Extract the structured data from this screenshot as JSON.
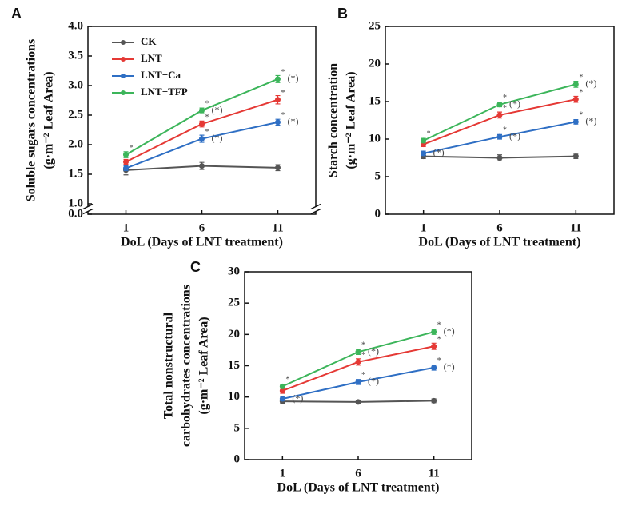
{
  "chart_data": [
    {
      "type": "line",
      "panel": "A",
      "ylabel": [
        "Soluble sugars concentrations",
        "(g·m⁻² Leaf Area)"
      ],
      "xlabel": "DoL (Days of LNT treatment)",
      "categories": [
        "1",
        "6",
        "11"
      ],
      "ylim": [
        0,
        4
      ],
      "ybreak": [
        0,
        1
      ],
      "yticks": [
        {
          "value": 0,
          "label": "0.0"
        },
        {
          "value": 1,
          "label": "1.0"
        },
        1.5,
        {
          "value": 2,
          "label": "2.0"
        },
        2.5,
        {
          "value": 3,
          "label": "3.0"
        },
        3.5,
        {
          "value": 4,
          "label": "4.0"
        }
      ],
      "legend": "upper left",
      "series": [
        {
          "name": "CK",
          "color": "#555555",
          "values": [
            1.57,
            1.64,
            1.61
          ],
          "errors": [
            0.08,
            0.06,
            0.05
          ]
        },
        {
          "name": "LNT",
          "color": "#e53935",
          "values": [
            1.71,
            2.35,
            2.76
          ],
          "errors": [
            0.04,
            0.05,
            0.07
          ],
          "point_labels": [
            null,
            "*",
            "*"
          ]
        },
        {
          "name": "LNT+Ca",
          "color": "#2f6fc4",
          "values": [
            1.6,
            2.1,
            2.38
          ],
          "errors": [
            0.04,
            0.06,
            0.05
          ],
          "point_labels": [
            null,
            "*",
            "*"
          ],
          "side_labels": [
            null,
            "(*)",
            "(*)"
          ]
        },
        {
          "name": "LNT+TFP",
          "color": "#3cb55a",
          "values": [
            1.83,
            2.58,
            3.11
          ],
          "errors": [
            0.05,
            0.04,
            0.06
          ],
          "point_labels": [
            "*",
            "*",
            "*"
          ],
          "side_labels": [
            null,
            "(*)",
            "(*)"
          ]
        }
      ]
    },
    {
      "type": "line",
      "panel": "B",
      "ylabel": [
        "Starch concentration",
        "(g·m⁻² Leaf Area)"
      ],
      "xlabel": "DoL (Days of LNT treatment)",
      "categories": [
        "1",
        "6",
        "11"
      ],
      "ylim": [
        0,
        25
      ],
      "yticks": [
        0,
        5,
        10,
        15,
        20,
        25
      ],
      "series": [
        {
          "name": "CK",
          "color": "#555555",
          "values": [
            7.7,
            7.5,
            7.7
          ],
          "errors": [
            0.3,
            0.4,
            0.3
          ]
        },
        {
          "name": "LNT",
          "color": "#e53935",
          "values": [
            9.3,
            13.2,
            15.3
          ],
          "errors": [
            0.3,
            0.4,
            0.4
          ],
          "point_labels": [
            null,
            "*",
            "*"
          ]
        },
        {
          "name": "LNT+Ca",
          "color": "#2f6fc4",
          "values": [
            8.1,
            10.3,
            12.3
          ],
          "errors": [
            0.3,
            0.3,
            0.3
          ],
          "point_labels": [
            null,
            "*",
            "*"
          ],
          "side_labels": [
            "(*)",
            "(*)",
            "(*)"
          ]
        },
        {
          "name": "LNT+TFP",
          "color": "#3cb55a",
          "values": [
            9.8,
            14.6,
            17.3
          ],
          "errors": [
            0.3,
            0.3,
            0.4
          ],
          "point_labels": [
            "*",
            "*",
            "*"
          ],
          "side_labels": [
            null,
            "(*)",
            "(*)"
          ]
        }
      ]
    },
    {
      "type": "line",
      "panel": "C",
      "ylabel": [
        "Total nonstructural",
        "carbohydrates concentrations",
        "(g·m⁻² Leaf Area)"
      ],
      "xlabel": "DoL (Days of LNT treatment)",
      "categories": [
        "1",
        "6",
        "11"
      ],
      "ylim": [
        0,
        30
      ],
      "yticks": [
        0,
        5,
        10,
        15,
        20,
        25,
        30
      ],
      "series": [
        {
          "name": "CK",
          "color": "#555555",
          "values": [
            9.3,
            9.2,
            9.4
          ],
          "errors": [
            0.3,
            0.3,
            0.3
          ]
        },
        {
          "name": "LNT",
          "color": "#e53935",
          "values": [
            11,
            15.6,
            18.1
          ],
          "errors": [
            0.4,
            0.5,
            0.5
          ],
          "point_labels": [
            null,
            "*",
            "*"
          ]
        },
        {
          "name": "LNT+Ca",
          "color": "#2f6fc4",
          "values": [
            9.7,
            12.4,
            14.7
          ],
          "errors": [
            0.3,
            0.4,
            0.4
          ],
          "point_labels": [
            null,
            "*",
            "*"
          ],
          "side_labels": [
            "(*)",
            "(*)",
            "(*)"
          ]
        },
        {
          "name": "LNT+TFP",
          "color": "#3cb55a",
          "values": [
            11.7,
            17.2,
            20.4
          ],
          "errors": [
            0.3,
            0.4,
            0.4
          ],
          "point_labels": [
            "*",
            "*",
            "*"
          ],
          "side_labels": [
            null,
            "(*)",
            "(*)"
          ]
        }
      ]
    }
  ]
}
